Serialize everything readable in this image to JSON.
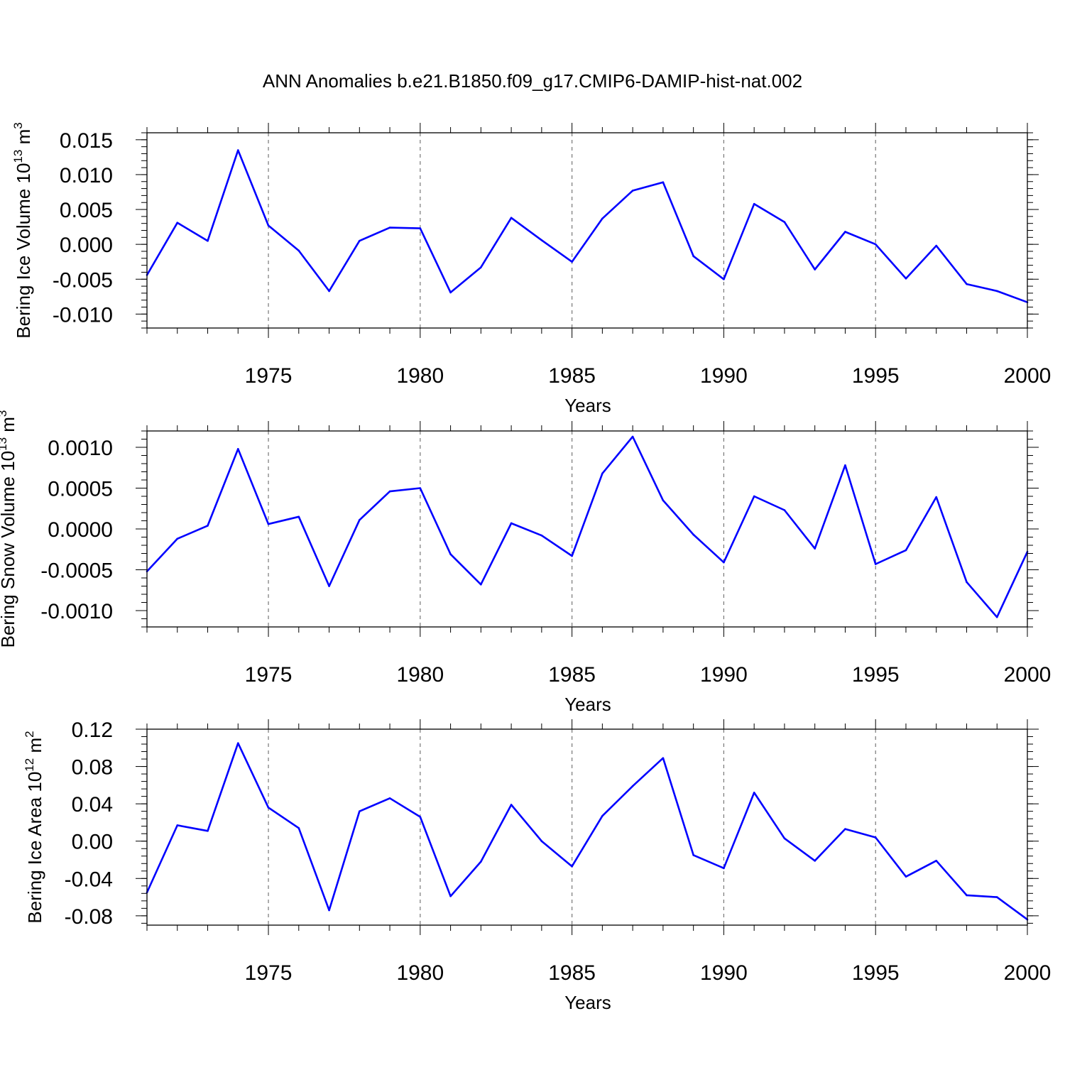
{
  "figure": {
    "title": "ANN Anomalies b.e21.B1850.f09_g17.CMIP6-DAMIP-hist-nat.002"
  },
  "chart_data": [
    {
      "type": "line",
      "title": "",
      "xlabel": "Years",
      "ylabel": "Bering Ice Volume 10",
      "ylabel_exp": "13",
      "ylabel_unit": " m",
      "ylabel_unit_exp": "3",
      "xlim": [
        1971,
        2000
      ],
      "ylim": [
        -0.012,
        0.016
      ],
      "x_ticks": [
        1975,
        1980,
        1985,
        1990,
        1995,
        2000
      ],
      "x_tick_labels": [
        "1975",
        "1980",
        "1985",
        "1990",
        "1995",
        "2000"
      ],
      "y_ticks": [
        -0.01,
        -0.005,
        0.0,
        0.005,
        0.01,
        0.015
      ],
      "y_tick_labels": [
        "-0.010",
        "-0.005",
        "0.000",
        "0.005",
        "0.010",
        "0.015"
      ],
      "grid": "vertical dashed at major x ticks",
      "color": "#0000ff",
      "x": [
        1971,
        1972,
        1973,
        1974,
        1975,
        1976,
        1977,
        1978,
        1979,
        1980,
        1981,
        1982,
        1983,
        1984,
        1985,
        1986,
        1987,
        1988,
        1989,
        1990,
        1991,
        1992,
        1993,
        1994,
        1995,
        1996,
        1997,
        1998,
        1999,
        2000
      ],
      "y": [
        -0.0044,
        0.0031,
        0.0005,
        0.0135,
        0.0027,
        -0.0009,
        -0.0067,
        0.0005,
        0.0024,
        0.0023,
        -0.0069,
        -0.0033,
        0.0038,
        0.0006,
        -0.0025,
        0.0037,
        0.0077,
        0.0089,
        -0.0017,
        -0.005,
        0.0058,
        0.0032,
        -0.0036,
        0.0018,
        0.0,
        -0.0049,
        -0.0002,
        -0.0057,
        -0.0067,
        -0.0083
      ]
    },
    {
      "type": "line",
      "title": "",
      "xlabel": "Years",
      "ylabel": "Bering Snow Volume 10",
      "ylabel_exp": "13",
      "ylabel_unit": " m",
      "ylabel_unit_exp": "3",
      "xlim": [
        1971,
        2000
      ],
      "ylim": [
        -0.0012,
        0.0012
      ],
      "x_ticks": [
        1975,
        1980,
        1985,
        1990,
        1995,
        2000
      ],
      "x_tick_labels": [
        "1975",
        "1980",
        "1985",
        "1990",
        "1995",
        "2000"
      ],
      "y_ticks": [
        -0.001,
        -0.0005,
        0.0,
        0.0005,
        0.001
      ],
      "y_tick_labels": [
        "-0.0010",
        "-0.0005",
        "0.0000",
        "0.0005",
        "0.0010"
      ],
      "grid": "vertical dashed at major x ticks",
      "color": "#0000ff",
      "x": [
        1971,
        1972,
        1973,
        1974,
        1975,
        1976,
        1977,
        1978,
        1979,
        1980,
        1981,
        1982,
        1983,
        1984,
        1985,
        1986,
        1987,
        1988,
        1989,
        1990,
        1991,
        1992,
        1993,
        1994,
        1995,
        1996,
        1997,
        1998,
        1999,
        2000
      ],
      "y": [
        -0.00052,
        -0.00012,
        4e-05,
        0.00098,
        6e-05,
        0.00015,
        -0.0007,
        0.00011,
        0.00046,
        0.0005,
        -0.00031,
        -0.00068,
        7e-05,
        -8e-05,
        -0.00033,
        0.00068,
        0.00113,
        0.00035,
        -7e-05,
        -0.00041,
        0.0004,
        0.00023,
        -0.00024,
        0.00078,
        -0.00043,
        -0.00026,
        0.00039,
        -0.00065,
        -0.00108,
        -0.00028
      ]
    },
    {
      "type": "line",
      "title": "",
      "xlabel": "Years",
      "ylabel": "Bering Ice Area 10",
      "ylabel_exp": "12",
      "ylabel_unit": " m",
      "ylabel_unit_exp": "2",
      "xlim": [
        1971,
        2000
      ],
      "ylim": [
        -0.09,
        0.12
      ],
      "x_ticks": [
        1975,
        1980,
        1985,
        1990,
        1995,
        2000
      ],
      "x_tick_labels": [
        "1975",
        "1980",
        "1985",
        "1990",
        "1995",
        "2000"
      ],
      "y_ticks": [
        -0.08,
        -0.04,
        0.0,
        0.04,
        0.08,
        0.12
      ],
      "y_tick_labels": [
        "-0.08",
        "-0.04",
        "0.00",
        "0.04",
        "0.08",
        "0.12"
      ],
      "grid": "vertical dashed at major x ticks",
      "color": "#0000ff",
      "x": [
        1971,
        1972,
        1973,
        1974,
        1975,
        1976,
        1977,
        1978,
        1979,
        1980,
        1981,
        1982,
        1983,
        1984,
        1985,
        1986,
        1987,
        1988,
        1989,
        1990,
        1991,
        1992,
        1993,
        1994,
        1995,
        1996,
        1997,
        1998,
        1999,
        2000
      ],
      "y": [
        -0.055,
        0.017,
        0.011,
        0.105,
        0.036,
        0.014,
        -0.074,
        0.032,
        0.046,
        0.026,
        -0.059,
        -0.022,
        0.039,
        0.0,
        -0.027,
        0.027,
        0.059,
        0.089,
        -0.015,
        -0.029,
        0.052,
        0.003,
        -0.021,
        0.013,
        0.004,
        -0.038,
        -0.021,
        -0.058,
        -0.06,
        -0.084
      ]
    }
  ]
}
